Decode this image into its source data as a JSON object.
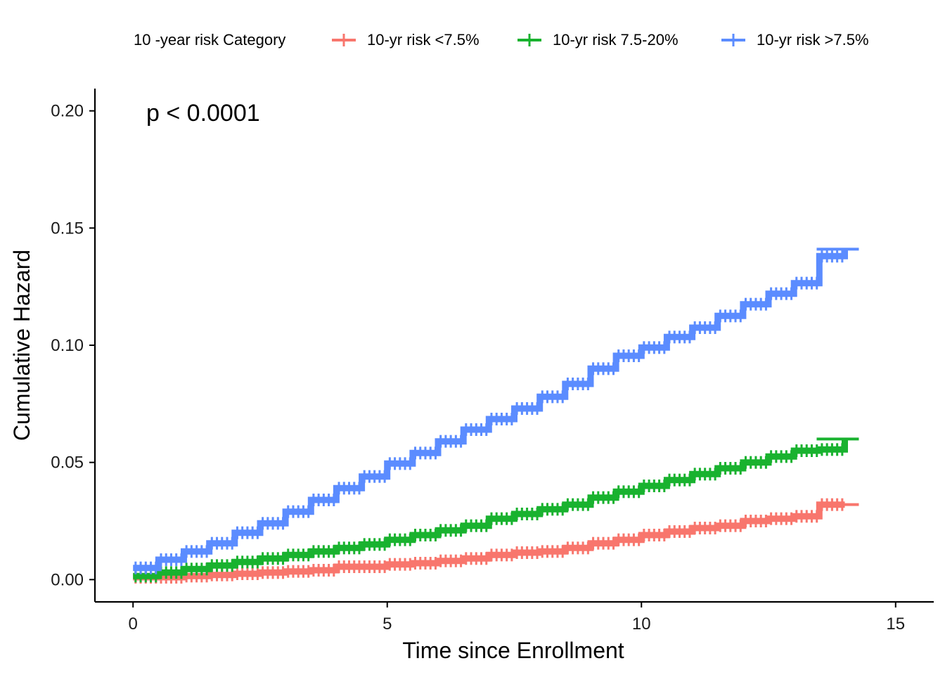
{
  "chart_data": {
    "type": "line",
    "subtype": "step",
    "xlabel": "Time since Enrollment",
    "ylabel": "Cumulative Hazard",
    "xlim": [
      -0.75,
      15.75
    ],
    "ylim": [
      -0.0095,
      0.2095
    ],
    "x_ticks": [
      0,
      5,
      10,
      15
    ],
    "x_tick_labels": [
      "0",
      "5",
      "10",
      "15"
    ],
    "y_ticks": [
      0,
      0.05,
      0.1,
      0.15,
      0.2
    ],
    "y_tick_labels": [
      "0.00",
      "0.05",
      "0.10",
      "0.15",
      "0.20"
    ],
    "grid": false,
    "legend": {
      "title": "10 -year risk Category",
      "position": "top",
      "marker": "line-with-plus"
    },
    "annotation": "p < 0.0001",
    "series": [
      {
        "name": "10-yr risk <7.5%",
        "color": "#f8766d",
        "x": [
          0,
          0.5,
          1,
          1.5,
          2,
          2.5,
          3,
          3.5,
          4,
          4.5,
          5,
          5.5,
          6,
          6.5,
          7,
          7.5,
          8,
          8.5,
          9,
          9.5,
          10,
          10.5,
          11,
          11.5,
          12,
          12.5,
          13,
          13.5,
          14
        ],
        "y": [
          0.001,
          0.001,
          0.0015,
          0.002,
          0.0025,
          0.003,
          0.0035,
          0.004,
          0.0055,
          0.0055,
          0.0065,
          0.007,
          0.008,
          0.009,
          0.0105,
          0.0115,
          0.012,
          0.0135,
          0.0155,
          0.017,
          0.019,
          0.0205,
          0.022,
          0.023,
          0.025,
          0.026,
          0.027,
          0.032,
          0.032
        ]
      },
      {
        "name": "10-yr risk 7.5-20%",
        "color": "#19b22f",
        "x": [
          0,
          0.5,
          1,
          1.5,
          2,
          2.5,
          3,
          3.5,
          4,
          4.5,
          5,
          5.5,
          6,
          6.5,
          7,
          7.5,
          8,
          8.5,
          9,
          9.5,
          10,
          10.5,
          11,
          11.5,
          12,
          12.5,
          13,
          13.5,
          14
        ],
        "y": [
          0.0015,
          0.003,
          0.0045,
          0.006,
          0.0075,
          0.009,
          0.0105,
          0.012,
          0.0135,
          0.015,
          0.017,
          0.019,
          0.021,
          0.023,
          0.026,
          0.028,
          0.03,
          0.032,
          0.035,
          0.0375,
          0.04,
          0.0425,
          0.045,
          0.0475,
          0.05,
          0.0525,
          0.055,
          0.0555,
          0.06
        ]
      },
      {
        "name": "10-yr risk >7.5%",
        "color": "#5b8cff",
        "x": [
          0,
          0.5,
          1,
          1.5,
          2,
          2.5,
          3,
          3.5,
          4,
          4.5,
          5,
          5.5,
          6,
          6.5,
          7,
          7.5,
          8,
          8.5,
          9,
          9.5,
          10,
          10.5,
          11,
          11.5,
          12,
          12.5,
          13,
          13.5,
          14
        ],
        "y": [
          0.005,
          0.0085,
          0.012,
          0.0155,
          0.02,
          0.024,
          0.029,
          0.034,
          0.039,
          0.044,
          0.0495,
          0.054,
          0.059,
          0.064,
          0.0685,
          0.073,
          0.078,
          0.0835,
          0.09,
          0.0955,
          0.099,
          0.1035,
          0.1075,
          0.1125,
          0.1175,
          0.122,
          0.1265,
          0.138,
          0.141
        ]
      }
    ]
  }
}
